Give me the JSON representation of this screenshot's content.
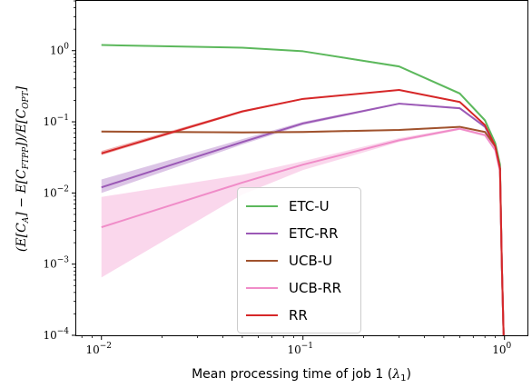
{
  "chart_data": {
    "type": "line",
    "title": "",
    "xlabel_main": "Mean processing time of job 1 (",
    "xlabel_sym": "λ",
    "xlabel_sub": "1",
    "xlabel_end": ")",
    "ylabel_a": "(E[C",
    "ylabel_a_sub": "A",
    "ylabel_b": "] − E[C",
    "ylabel_b_sub": "FTPP",
    "ylabel_c": "])/E[C",
    "ylabel_c_sub": "OPT",
    "ylabel_d": "]",
    "xscale": "log",
    "yscale": "log",
    "xlim": [
      0.0075,
      1.3
    ],
    "ylim": [
      0.0001,
      5
    ],
    "grid": false,
    "legend_position": "lower-center",
    "x_ticks": [
      {
        "value": 0.01,
        "base": "10",
        "exp": "−2"
      },
      {
        "value": 0.1,
        "base": "10",
        "exp": "−1"
      },
      {
        "value": 1,
        "base": "10",
        "exp": "0"
      }
    ],
    "y_ticks": [
      {
        "value": 0.0001,
        "base": "10",
        "exp": "−4"
      },
      {
        "value": 0.001,
        "base": "10",
        "exp": "−3"
      },
      {
        "value": 0.01,
        "base": "10",
        "exp": "−2"
      },
      {
        "value": 0.1,
        "base": "10",
        "exp": "−1"
      },
      {
        "value": 1,
        "base": "10",
        "exp": "0"
      }
    ],
    "series": [
      {
        "name": "ETC-U",
        "color": "#5cb85c",
        "x": [
          0.01,
          0.05,
          0.1,
          0.3,
          0.6,
          0.8,
          0.9,
          0.95,
          0.97,
          0.99
        ],
        "y": [
          1.2,
          1.1,
          0.98,
          0.6,
          0.25,
          0.105,
          0.05,
          0.025,
          0.001,
          0.0001
        ],
        "y_lower": [
          1.18,
          1.08,
          0.96,
          0.58,
          0.24,
          0.1,
          0.048,
          0.024,
          0.0009,
          0.0001
        ],
        "y_upper": [
          1.22,
          1.12,
          1.0,
          0.62,
          0.26,
          0.11,
          0.052,
          0.026,
          0.0011,
          0.0001
        ]
      },
      {
        "name": "ETC-RR",
        "color": "#9b59b6",
        "x": [
          0.01,
          0.05,
          0.1,
          0.3,
          0.6,
          0.8,
          0.9,
          0.95,
          0.97,
          0.99
        ],
        "y": [
          0.012,
          0.052,
          0.095,
          0.18,
          0.155,
          0.085,
          0.045,
          0.022,
          0.001,
          0.0001
        ],
        "y_lower": [
          0.01,
          0.048,
          0.09,
          0.175,
          0.15,
          0.082,
          0.043,
          0.021,
          0.0009,
          0.0001
        ],
        "y_upper": [
          0.0155,
          0.057,
          0.1,
          0.185,
          0.16,
          0.088,
          0.047,
          0.023,
          0.0011,
          0.0001
        ]
      },
      {
        "name": "UCB-U",
        "color": "#a0522d",
        "x": [
          0.01,
          0.05,
          0.1,
          0.3,
          0.6,
          0.8,
          0.9,
          0.95,
          0.97,
          0.99
        ],
        "y": [
          0.073,
          0.071,
          0.072,
          0.077,
          0.085,
          0.072,
          0.045,
          0.022,
          0.001,
          0.0001
        ],
        "y_lower": [
          0.071,
          0.069,
          0.07,
          0.075,
          0.083,
          0.07,
          0.044,
          0.021,
          0.0009,
          0.0001
        ],
        "y_upper": [
          0.075,
          0.073,
          0.074,
          0.079,
          0.087,
          0.074,
          0.046,
          0.023,
          0.0011,
          0.0001
        ]
      },
      {
        "name": "UCB-RR",
        "color": "#f08cc8",
        "x": [
          0.01,
          0.05,
          0.1,
          0.3,
          0.6,
          0.8,
          0.9,
          0.95,
          0.97,
          0.99
        ],
        "y": [
          0.0033,
          0.014,
          0.025,
          0.055,
          0.08,
          0.065,
          0.04,
          0.02,
          0.001,
          0.0001
        ],
        "y_lower": [
          0.00065,
          0.0095,
          0.021,
          0.052,
          0.077,
          0.062,
          0.038,
          0.019,
          0.0009,
          0.0001
        ],
        "y_upper": [
          0.0088,
          0.018,
          0.028,
          0.059,
          0.083,
          0.068,
          0.042,
          0.021,
          0.0011,
          0.0001
        ]
      },
      {
        "name": "RR",
        "color": "#d62728",
        "x": [
          0.01,
          0.05,
          0.1,
          0.3,
          0.6,
          0.8,
          0.9,
          0.95,
          0.97,
          0.99
        ],
        "y": [
          0.036,
          0.14,
          0.21,
          0.28,
          0.19,
          0.09,
          0.045,
          0.022,
          0.001,
          0.0001
        ],
        "y_lower": [
          0.034,
          0.135,
          0.205,
          0.275,
          0.185,
          0.087,
          0.043,
          0.021,
          0.0009,
          0.0001
        ],
        "y_upper": [
          0.039,
          0.145,
          0.215,
          0.285,
          0.195,
          0.093,
          0.047,
          0.023,
          0.0011,
          0.0001
        ]
      }
    ]
  }
}
